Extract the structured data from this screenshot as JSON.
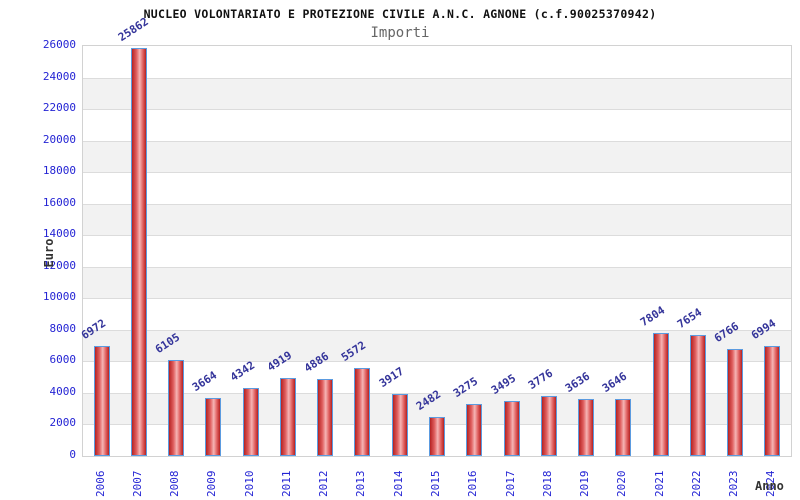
{
  "header": {
    "title": "NUCLEO VOLONTARIATO E PROTEZIONE CIVILE A.N.C. AGNONE (c.f.90025370942)",
    "subtitle": "Importi"
  },
  "chart_data": {
    "type": "bar",
    "title": "NUCLEO VOLONTARIATO E PROTEZIONE CIVILE A.N.C. AGNONE (c.f.90025370942)",
    "subtitle": "Importi",
    "categories": [
      "2006",
      "2007",
      "2008",
      "2009",
      "2010",
      "2011",
      "2012",
      "2013",
      "2014",
      "2015",
      "2016",
      "2017",
      "2018",
      "2019",
      "2020",
      "2021",
      "2022",
      "2023",
      "2024"
    ],
    "values": [
      6972,
      25862,
      6105,
      3664,
      4342,
      4919,
      4886,
      5572,
      3917,
      2482,
      3275,
      3495,
      3776,
      3636,
      3646,
      7804,
      7654,
      6766,
      6994
    ],
    "xlabel": "Anno",
    "ylabel": "Euro",
    "ylim": [
      0,
      26000
    ],
    "ytick_step": 2000,
    "yticks": [
      0,
      2000,
      4000,
      6000,
      8000,
      10000,
      12000,
      14000,
      16000,
      18000,
      20000,
      22000,
      24000,
      26000
    ],
    "grid": true,
    "legend": "none",
    "bar_labels_rotated": true,
    "colors": {
      "tick_label": "#2424d4",
      "value_label": "#34349a",
      "band_gray": "#f2f2f2",
      "band_white": "#ffffff",
      "gridline": "#dcdcdc",
      "bar_border": "#5b9be0",
      "bar_dark": "#b52222",
      "bar_mid": "#e06060",
      "bar_light": "#f5b4b4",
      "axis_text": "#333333",
      "title_text": "#111111",
      "subtitle_text": "#666666"
    }
  }
}
